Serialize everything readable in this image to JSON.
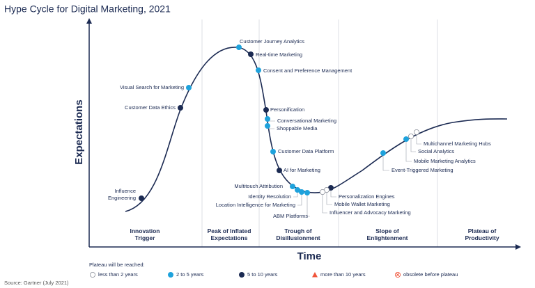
{
  "title": "Hype Cycle for Digital Marketing, 2021",
  "y_axis_label": "Expectations",
  "x_axis_label": "Time",
  "phases": [
    [
      "Innovation",
      "Trigger"
    ],
    [
      "Peak of Inflated",
      "Expectations"
    ],
    [
      "Trough of",
      "Disillusionment"
    ],
    [
      "Slope of",
      "Enlightenment"
    ],
    [
      "Plateau of",
      "Productivity"
    ]
  ],
  "points": [
    {
      "label": [
        "Customer Journey Analytics"
      ],
      "color": "#1ea2dc"
    },
    {
      "label": [
        "Real-time Marketing"
      ],
      "color": "#1b2a52"
    },
    {
      "label": [
        "Consent and Preference Management"
      ],
      "color": "#1ea2dc"
    },
    {
      "label": [
        "Visual Search for Marketing"
      ],
      "color": "#1ea2dc"
    },
    {
      "label": [
        "Customer Data Ethics"
      ],
      "color": "#1b2a52"
    },
    {
      "label": [
        "Personification"
      ],
      "color": "#1b2a52"
    },
    {
      "label": [
        "Conversational Marketing"
      ],
      "color": "#1ea2dc"
    },
    {
      "label": [
        "Shoppable Media"
      ],
      "color": "#1ea2dc"
    },
    {
      "label": [
        "Customer Data Platform"
      ],
      "color": "#1ea2dc"
    },
    {
      "label": [
        "AI for Marketing"
      ],
      "color": "#1b2a52"
    },
    {
      "label": [
        "Multitouch Attribution"
      ],
      "color": "#1ea2dc"
    },
    {
      "label": [
        "Identity Resolution"
      ],
      "color": "#1ea2dc"
    },
    {
      "label": [
        "Location Intelligence for Marketing"
      ],
      "color": "#1ea2dc"
    },
    {
      "label": [
        "ABM Platforms"
      ],
      "color": "#1ea2dc"
    },
    {
      "label": [
        "Personalization Engines"
      ],
      "color": "#1b2a52"
    },
    {
      "label": [
        "Mobile Wallet Marketing"
      ],
      "color": "#ffffff"
    },
    {
      "label": [
        "Influencer and Advocacy Marketing"
      ],
      "color": "#ffffff"
    },
    {
      "label": [
        "Event-Triggered Marketing"
      ],
      "color": "#1ea2dc"
    },
    {
      "label": [
        "Mobile Marketing Analytics"
      ],
      "color": "#1ea2dc"
    },
    {
      "label": [
        "Social Analytics"
      ],
      "color": "#ffffff"
    },
    {
      "label": [
        "Multichannel Marketing Hubs"
      ],
      "color": "#ffffff"
    },
    {
      "label": [
        "Influence",
        "Engineering"
      ],
      "color": "#1b2a52"
    }
  ],
  "legend": {
    "title": "Plateau will be reached:",
    "items": [
      {
        "label": "less than 2 years",
        "marker": "circle",
        "color": "#ffffff"
      },
      {
        "label": "2 to 5 years",
        "marker": "circle",
        "color": "#1ea2dc"
      },
      {
        "label": "5 to 10 years",
        "marker": "circle",
        "color": "#1b2a52"
      },
      {
        "label": "more than 10 years",
        "marker": "triangle",
        "color": "#f0553b"
      },
      {
        "label": "obsolete before plateau",
        "marker": "crossed",
        "color": "#f0553b"
      }
    ]
  },
  "source": "Source: Gartner (July 2021)"
}
